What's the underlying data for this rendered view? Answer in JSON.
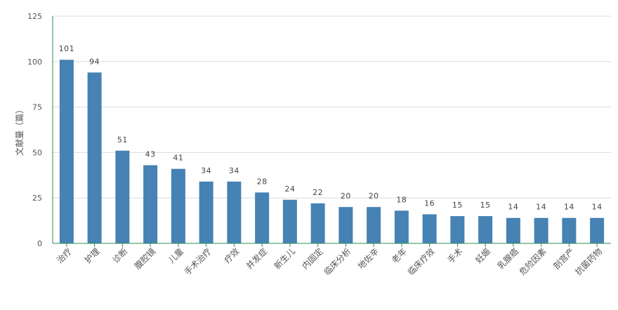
{
  "chart_data": {
    "type": "bar",
    "ylabel": "文献量（篇）",
    "xlabel": "",
    "title": "",
    "ylim": [
      0,
      125
    ],
    "yticks": [
      0,
      25,
      50,
      75,
      100,
      125
    ],
    "grid": true,
    "categories": [
      "治疗",
      "护理",
      "诊断",
      "腹腔镜",
      "儿童",
      "手术治疗",
      "疗效",
      "并发症",
      "新生儿",
      "内固定",
      "临床分析",
      "地佐辛",
      "老年",
      "临床疗效",
      "手术",
      "妊娠",
      "乳腺癌",
      "危险因素",
      "剖宫产",
      "抗菌药物"
    ],
    "values": [
      101,
      94,
      51,
      43,
      41,
      34,
      34,
      28,
      24,
      22,
      20,
      20,
      18,
      16,
      15,
      15,
      14,
      14,
      14,
      14
    ],
    "colors": {
      "bar": "#4682b4",
      "axis": "#2e8b57",
      "grid": "#dcdcdc",
      "text": "#555555"
    }
  }
}
